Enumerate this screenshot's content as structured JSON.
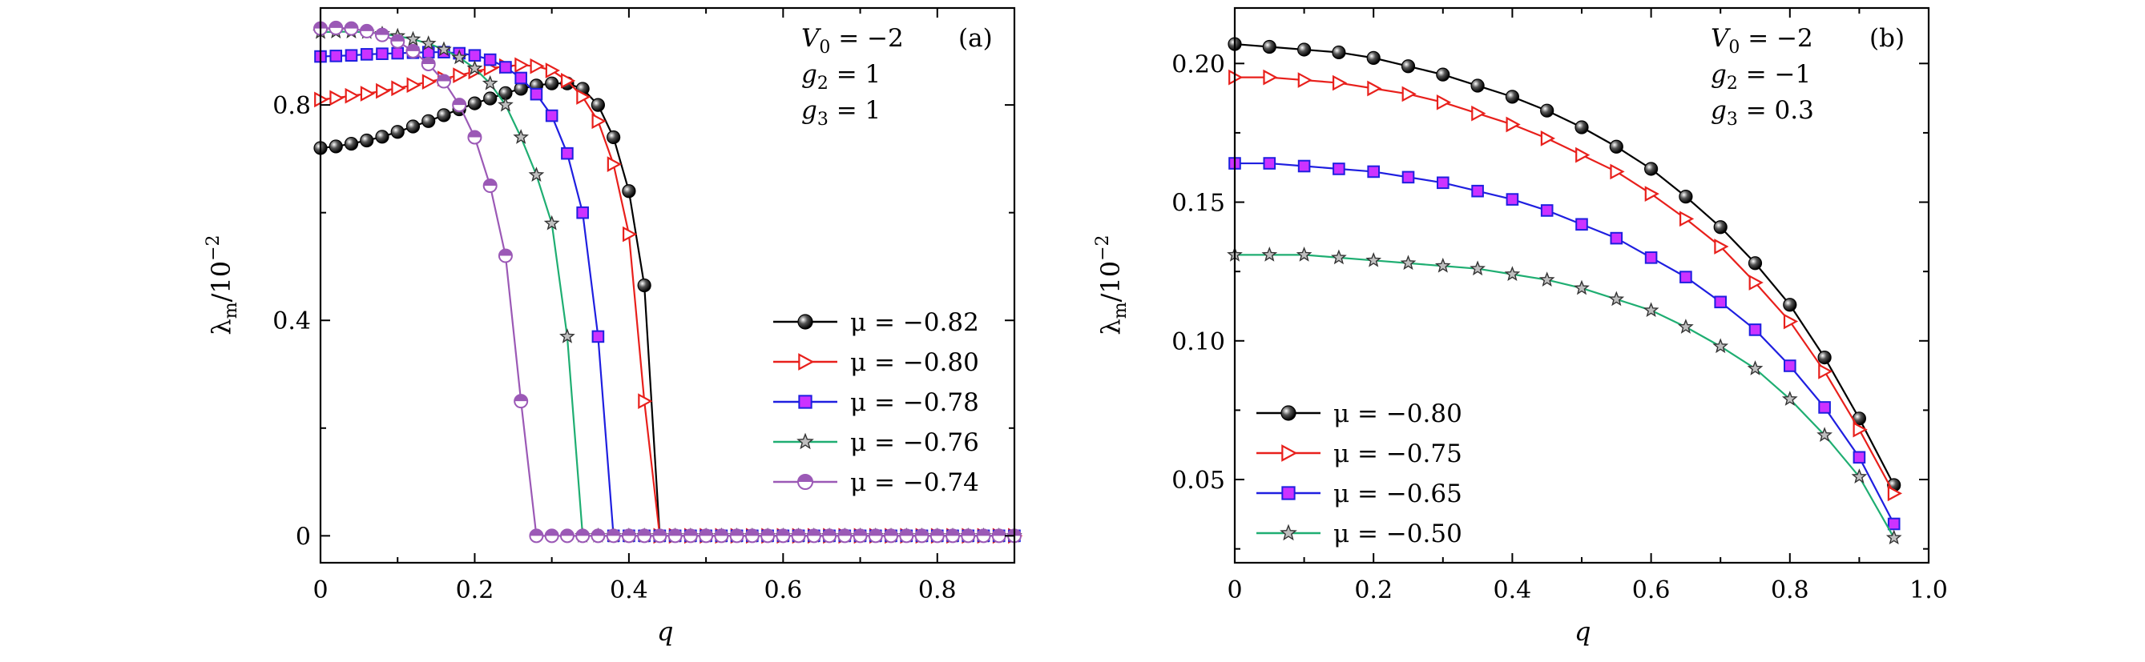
{
  "chart_data": [
    {
      "type": "line",
      "panel_label": "(a)",
      "annotation": [
        "V_0 = −2",
        "g_2 = 1",
        "g_3 = 1"
      ],
      "xlabel": "q",
      "ylabel": "λm/10−2",
      "xlim": [
        0,
        0.9
      ],
      "ylim": [
        -0.05,
        0.98
      ],
      "xticks": [
        "0",
        "0.2",
        "0.4",
        "0.6",
        "0.8"
      ],
      "yticks": [
        "0",
        "0.4",
        "0.8"
      ],
      "legend_position": "right",
      "series": [
        {
          "name": "μ = −0.82",
          "color": "#000000",
          "marker": "ball",
          "x": [
            0,
            0.02,
            0.04,
            0.06,
            0.08,
            0.1,
            0.12,
            0.14,
            0.16,
            0.18,
            0.2,
            0.22,
            0.24,
            0.26,
            0.28,
            0.3,
            0.32,
            0.34,
            0.36,
            0.38,
            0.4,
            0.42,
            0.44,
            0.46,
            0.48,
            0.5,
            0.52,
            0.54,
            0.56,
            0.58,
            0.6,
            0.62,
            0.64,
            0.66,
            0.68,
            0.7,
            0.72,
            0.74,
            0.76,
            0.78,
            0.8,
            0.82,
            0.84,
            0.86,
            0.88,
            0.9
          ],
          "y": [
            0.72,
            0.723,
            0.728,
            0.734,
            0.741,
            0.75,
            0.76,
            0.77,
            0.781,
            0.792,
            0.803,
            0.812,
            0.822,
            0.83,
            0.836,
            0.84,
            0.84,
            0.83,
            0.8,
            0.74,
            0.64,
            0.465,
            0,
            0,
            0,
            0,
            0,
            0,
            0,
            0,
            0,
            0,
            0,
            0,
            0,
            0,
            0,
            0,
            0,
            0,
            0,
            0,
            0,
            0,
            0,
            0
          ]
        },
        {
          "name": "μ = −0.80",
          "color": "#e8201c",
          "marker": "triangle-right",
          "x": [
            0,
            0.02,
            0.04,
            0.06,
            0.08,
            0.1,
            0.12,
            0.14,
            0.16,
            0.18,
            0.2,
            0.22,
            0.24,
            0.26,
            0.28,
            0.3,
            0.32,
            0.34,
            0.36,
            0.38,
            0.4,
            0.42,
            0.44,
            0.46,
            0.48,
            0.5,
            0.52,
            0.54,
            0.56,
            0.58,
            0.6,
            0.62,
            0.64,
            0.66,
            0.68,
            0.7,
            0.72,
            0.74,
            0.76,
            0.78,
            0.8,
            0.82,
            0.84,
            0.86,
            0.88,
            0.9
          ],
          "y": [
            0.81,
            0.813,
            0.817,
            0.821,
            0.826,
            0.831,
            0.837,
            0.843,
            0.849,
            0.855,
            0.862,
            0.868,
            0.872,
            0.874,
            0.872,
            0.864,
            0.845,
            0.815,
            0.77,
            0.69,
            0.56,
            0.25,
            0,
            0,
            0,
            0,
            0,
            0,
            0,
            0,
            0,
            0,
            0,
            0,
            0,
            0,
            0,
            0,
            0,
            0,
            0,
            0,
            0,
            0,
            0,
            0
          ]
        },
        {
          "name": "μ = −0.78",
          "color": "#1f1fe0",
          "marker": "square",
          "x": [
            0,
            0.02,
            0.04,
            0.06,
            0.08,
            0.1,
            0.12,
            0.14,
            0.16,
            0.18,
            0.2,
            0.22,
            0.24,
            0.26,
            0.28,
            0.3,
            0.32,
            0.34,
            0.36,
            0.38,
            0.4,
            0.42,
            0.44,
            0.46,
            0.48,
            0.5,
            0.52,
            0.54,
            0.56,
            0.58,
            0.6,
            0.62,
            0.64,
            0.66,
            0.68,
            0.7,
            0.72,
            0.74,
            0.76,
            0.78,
            0.8,
            0.82,
            0.84,
            0.86,
            0.88,
            0.9
          ],
          "y": [
            0.89,
            0.891,
            0.892,
            0.894,
            0.895,
            0.896,
            0.897,
            0.898,
            0.898,
            0.896,
            0.892,
            0.884,
            0.87,
            0.85,
            0.82,
            0.78,
            0.71,
            0.6,
            0.37,
            0,
            0,
            0,
            0,
            0,
            0,
            0,
            0,
            0,
            0,
            0,
            0,
            0,
            0,
            0,
            0,
            0,
            0,
            0,
            0,
            0,
            0,
            0,
            0,
            0,
            0,
            0
          ]
        },
        {
          "name": "μ = −0.76",
          "color": "#1fae72",
          "marker": "star",
          "x": [
            0,
            0.02,
            0.04,
            0.06,
            0.08,
            0.1,
            0.12,
            0.14,
            0.16,
            0.18,
            0.2,
            0.22,
            0.24,
            0.26,
            0.28,
            0.3,
            0.32,
            0.34,
            0.36,
            0.38,
            0.4,
            0.42,
            0.44,
            0.46,
            0.48,
            0.5,
            0.52,
            0.54,
            0.56,
            0.58,
            0.6,
            0.62,
            0.64,
            0.66,
            0.68,
            0.7,
            0.72,
            0.74,
            0.76,
            0.78,
            0.8,
            0.82,
            0.84,
            0.86,
            0.88,
            0.9
          ],
          "y": [
            0.935,
            0.936,
            0.936,
            0.935,
            0.932,
            0.928,
            0.922,
            0.914,
            0.903,
            0.888,
            0.868,
            0.84,
            0.8,
            0.74,
            0.67,
            0.58,
            0.37,
            0,
            0,
            0,
            0,
            0,
            0,
            0,
            0,
            0,
            0,
            0,
            0,
            0,
            0,
            0,
            0,
            0,
            0,
            0,
            0,
            0,
            0,
            0,
            0,
            0,
            0,
            0,
            0,
            0
          ]
        },
        {
          "name": "μ = −0.74",
          "color": "#9b59b6",
          "marker": "half-circle",
          "x": [
            0,
            0.02,
            0.04,
            0.06,
            0.08,
            0.1,
            0.12,
            0.14,
            0.16,
            0.18,
            0.2,
            0.22,
            0.24,
            0.26,
            0.28,
            0.3,
            0.32,
            0.34,
            0.36,
            0.38,
            0.4,
            0.42,
            0.44,
            0.46,
            0.48,
            0.5,
            0.52,
            0.54,
            0.56,
            0.58,
            0.6,
            0.62,
            0.64,
            0.66,
            0.68,
            0.7,
            0.72,
            0.74,
            0.76,
            0.78,
            0.8,
            0.82,
            0.84,
            0.86,
            0.88,
            0.9
          ],
          "y": [
            0.942,
            0.943,
            0.942,
            0.937,
            0.93,
            0.918,
            0.9,
            0.876,
            0.844,
            0.8,
            0.74,
            0.65,
            0.52,
            0.25,
            0,
            0,
            0,
            0,
            0,
            0,
            0,
            0,
            0,
            0,
            0,
            0,
            0,
            0,
            0,
            0,
            0,
            0,
            0,
            0,
            0,
            0,
            0,
            0,
            0,
            0,
            0,
            0,
            0,
            0,
            0,
            0
          ]
        }
      ]
    },
    {
      "type": "line",
      "panel_label": "(b)",
      "annotation": [
        "V_0 = −2",
        "g_2 = −1",
        "g_3 = 0.3"
      ],
      "xlabel": "q",
      "ylabel": "λm/10−2",
      "xlim": [
        0,
        1.0
      ],
      "ylim": [
        0.02,
        0.22
      ],
      "xticks": [
        "0",
        "0.2",
        "0.4",
        "0.6",
        "0.8",
        "1.0"
      ],
      "yticks": [
        "0.05",
        "0.10",
        "0.15",
        "0.20"
      ],
      "legend_position": "bottom-left",
      "series": [
        {
          "name": "μ = −0.80",
          "color": "#000000",
          "marker": "ball",
          "x": [
            0,
            0.05,
            0.1,
            0.15,
            0.2,
            0.25,
            0.3,
            0.35,
            0.4,
            0.45,
            0.5,
            0.55,
            0.6,
            0.65,
            0.7,
            0.75,
            0.8,
            0.85,
            0.9,
            0.95
          ],
          "y": [
            0.207,
            0.206,
            0.205,
            0.204,
            0.202,
            0.199,
            0.196,
            0.192,
            0.188,
            0.183,
            0.177,
            0.17,
            0.162,
            0.152,
            0.141,
            0.128,
            0.113,
            0.094,
            0.072,
            0.048
          ]
        },
        {
          "name": "μ = −0.75",
          "color": "#e8201c",
          "marker": "triangle-right",
          "x": [
            0,
            0.05,
            0.1,
            0.15,
            0.2,
            0.25,
            0.3,
            0.35,
            0.4,
            0.45,
            0.5,
            0.55,
            0.6,
            0.65,
            0.7,
            0.75,
            0.8,
            0.85,
            0.9,
            0.95
          ],
          "y": [
            0.195,
            0.195,
            0.194,
            0.193,
            0.191,
            0.189,
            0.186,
            0.182,
            0.178,
            0.173,
            0.167,
            0.161,
            0.153,
            0.144,
            0.134,
            0.121,
            0.107,
            0.089,
            0.068,
            0.045
          ]
        },
        {
          "name": "μ = −0.65",
          "color": "#1f1fe0",
          "marker": "square",
          "x": [
            0,
            0.05,
            0.1,
            0.15,
            0.2,
            0.25,
            0.3,
            0.35,
            0.4,
            0.45,
            0.5,
            0.55,
            0.6,
            0.65,
            0.7,
            0.75,
            0.8,
            0.85,
            0.9,
            0.95
          ],
          "y": [
            0.164,
            0.164,
            0.163,
            0.162,
            0.161,
            0.159,
            0.157,
            0.154,
            0.151,
            0.147,
            0.142,
            0.137,
            0.13,
            0.123,
            0.114,
            0.104,
            0.091,
            0.076,
            0.058,
            0.034
          ]
        },
        {
          "name": "μ = −0.50",
          "color": "#1fae72",
          "marker": "star",
          "x": [
            0,
            0.05,
            0.1,
            0.15,
            0.2,
            0.25,
            0.3,
            0.35,
            0.4,
            0.45,
            0.5,
            0.55,
            0.6,
            0.65,
            0.7,
            0.75,
            0.8,
            0.85,
            0.9,
            0.95
          ],
          "y": [
            0.131,
            0.131,
            0.131,
            0.13,
            0.129,
            0.128,
            0.127,
            0.126,
            0.124,
            0.122,
            0.119,
            0.115,
            0.111,
            0.105,
            0.098,
            0.09,
            0.079,
            0.066,
            0.051,
            0.029
          ]
        }
      ]
    }
  ]
}
